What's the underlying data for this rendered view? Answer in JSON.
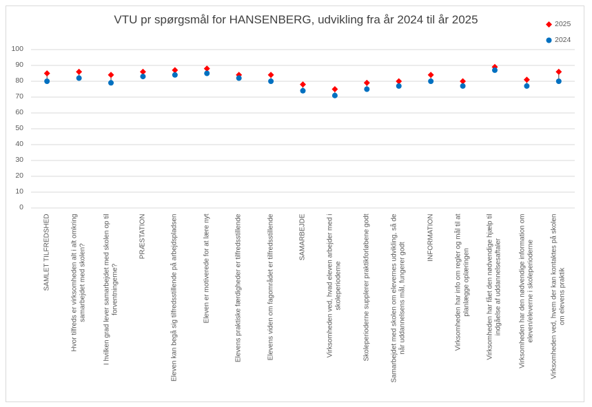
{
  "chart_data": {
    "type": "scatter",
    "title": "VTU pr spørgsmål for HANSENBERG, udvikling fra år 2024 til år 2025",
    "ylim": [
      0,
      100
    ],
    "yticks": [
      0,
      10,
      20,
      30,
      40,
      50,
      60,
      70,
      80,
      90,
      100
    ],
    "grid": true,
    "legend_position": "top-right",
    "categories": [
      [
        "SAMLET TILFREDSHED"
      ],
      [
        "Hvor tilfreds er virksomheden alt i alt omkring",
        "samarbejdet med skolen?"
      ],
      [
        "I hvilken grad lever samarbejdet med skolen op til",
        "forventningerne?"
      ],
      [
        "PRÆSTATION"
      ],
      [
        "Eleven kan begå sig tilfredsstillende på arbejdspladsen"
      ],
      [
        "Eleven er motiverede for at lære nyt"
      ],
      [
        "Elevens praktiske færdigheder er tilfredsstillende"
      ],
      [
        "Elevens viden om fagområdet er tilfredsstillende"
      ],
      [
        "SAMARBEJDE"
      ],
      [
        "Virksomheden ved, hvad eleven arbejder med i",
        "skoleperioderne"
      ],
      [
        "Skoleperioderne supplerer praktikforløbene godt"
      ],
      [
        "Samarbejdet med skolen om elevernes udvikling, så de",
        "når uddannelsens mål, fungerer godt"
      ],
      [
        "INFORMATION"
      ],
      [
        "Virksomheden har info om regler og mål til at",
        "planlægge oplæringen"
      ],
      [
        "Virksomheden har fået den nødvendige hjælp til",
        "indgåelse af uddannelsesaftaler"
      ],
      [
        "Virksomheden har den nødvendige information om",
        "eleven/eleverne i skoleperioderne"
      ],
      [
        "Virksomheden ved, hvem der kan kontaktes på skolen",
        "om elevens praktik"
      ]
    ],
    "series": [
      {
        "name": "2025",
        "marker": "diamond",
        "color": "#ff0000",
        "values": [
          85,
          86,
          84,
          86,
          87,
          88,
          84,
          84,
          78,
          75,
          79,
          80,
          84,
          80,
          89,
          81,
          86
        ]
      },
      {
        "name": "2024",
        "marker": "circle",
        "color": "#0070c0",
        "values": [
          80,
          82,
          79,
          83,
          84,
          85,
          82,
          80,
          74,
          71,
          75,
          77,
          80,
          77,
          87,
          77,
          80
        ]
      }
    ]
  }
}
